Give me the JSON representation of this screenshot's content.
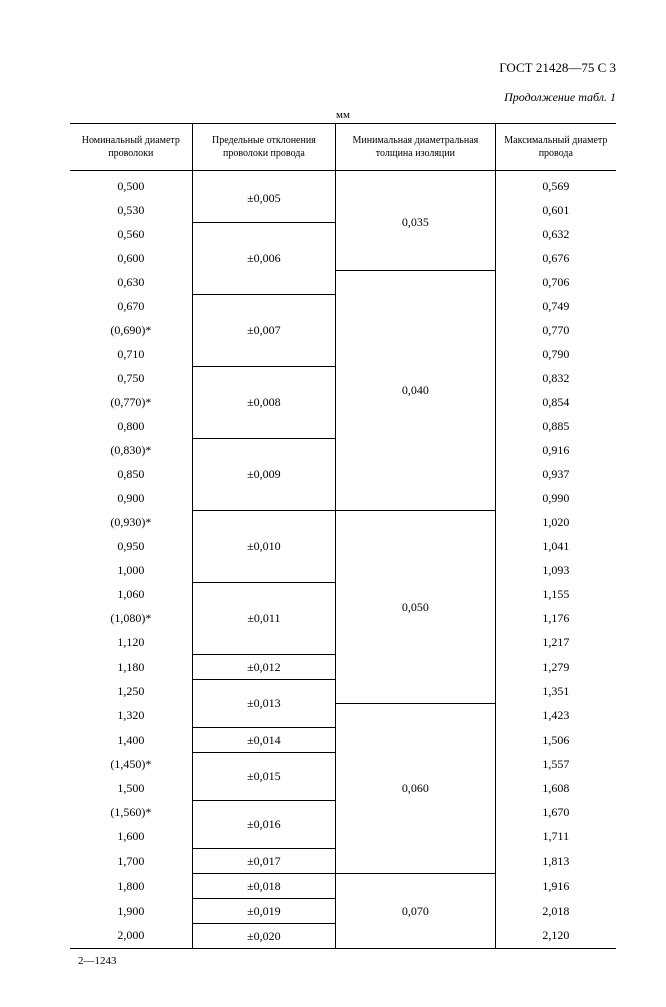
{
  "header": "ГОСТ 21428—75 С 3",
  "continuation": "Продолжение табл. 1",
  "unit": "мм",
  "columns": [
    "Номинальный диаметр проволоки",
    "Предельные отклонения проволоки провода",
    "Минимальная диаметральная толщина изоляции",
    "Максимальный диаметр провода"
  ],
  "col1": [
    "0,500",
    "0,530",
    "0,560",
    "0,600",
    "0,630",
    "0,670",
    "(0,690)*",
    "0,710",
    "0,750",
    "(0,770)*",
    "0,800",
    "(0,830)*",
    "0,850",
    "0,900",
    "(0,930)*",
    "0,950",
    "1,000",
    "1,060",
    "(1,080)*",
    "1,120",
    "1,180",
    "1,250",
    "1,320",
    "1,400",
    "(1,450)*",
    "1,500",
    "(1,560)*",
    "1,600",
    "1,700",
    "1,800",
    "1,900",
    "2,000"
  ],
  "col4": [
    "0,569",
    "0,601",
    "0,632",
    "0,676",
    "0,706",
    "0,749",
    "0,770",
    "0,790",
    "0,832",
    "0,854",
    "0,885",
    "0,916",
    "0,937",
    "0,990",
    "1,020",
    "1,041",
    "1,093",
    "1,155",
    "1,176",
    "1,217",
    "1,279",
    "1,351",
    "1,423",
    "1,506",
    "1,557",
    "1,608",
    "1,670",
    "1,711",
    "1,813",
    "1,916",
    "2,018",
    "2,120"
  ],
  "col2_groups": [
    {
      "span": 2,
      "value": "±0,005"
    },
    {
      "span": 3,
      "value": "±0,006"
    },
    {
      "span": 3,
      "value": "±0,007"
    },
    {
      "span": 3,
      "value": "±0,008"
    },
    {
      "span": 3,
      "value": "±0,009"
    },
    {
      "span": 3,
      "value": "±0,010"
    },
    {
      "span": 3,
      "value": "±0,011"
    },
    {
      "span": 1,
      "value": "±0,012"
    },
    {
      "span": 2,
      "value": "±0,013"
    },
    {
      "span": 1,
      "value": "±0,014"
    },
    {
      "span": 2,
      "value": "±0,015"
    },
    {
      "span": 2,
      "value": "±0,016"
    },
    {
      "span": 1,
      "value": "±0,017"
    },
    {
      "span": 1,
      "value": "±0,018"
    },
    {
      "span": 1,
      "value": "±0,019"
    },
    {
      "span": 1,
      "value": "±0,020"
    }
  ],
  "col3_groups": [
    {
      "span": 4,
      "value": "0,035"
    },
    {
      "span": 10,
      "value": "0,040"
    },
    {
      "span": 8,
      "value": "0,050"
    },
    {
      "span": 7,
      "value": "0,060"
    },
    {
      "span": 3,
      "value": "0,070"
    }
  ],
  "footer": "2—1243"
}
